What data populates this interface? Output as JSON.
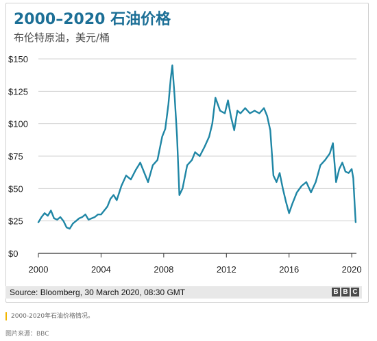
{
  "header": {
    "title": "2000–2020 石油价格",
    "subtitle": "布伦特原油，美元/桶"
  },
  "source": {
    "text": "Source: Bloomberg, 30 March 2020, 08:30 GMT",
    "logo_letters": [
      "B",
      "B",
      "C"
    ]
  },
  "caption": "2000-2020年石油价格情况。",
  "credit": "图片来源：BBC",
  "colors": {
    "line": "#1f86a5",
    "title": "#1c6f96",
    "grid": "#d0d0d0",
    "caption_accent": "#f2b600"
  },
  "chart_data": {
    "type": "line",
    "title": "2000–2020 石油价格",
    "subtitle": "布伦特原油，美元/桶",
    "xlabel": "",
    "ylabel": "",
    "xlim": [
      2000,
      2020.3
    ],
    "ylim": [
      0,
      150
    ],
    "x_ticks": [
      2000,
      2004,
      2008,
      2012,
      2016,
      2020
    ],
    "y_ticks": [
      0,
      25,
      50,
      75,
      100,
      125,
      150
    ],
    "y_tick_labels": [
      "$0",
      "$25",
      "$50",
      "$75",
      "$100",
      "$125",
      "$150"
    ],
    "grid": "horizontal",
    "series": [
      {
        "x": [
          2000.0,
          2000.2,
          2000.4,
          2000.6,
          2000.8,
          2001.0,
          2001.2,
          2001.4,
          2001.6,
          2001.8,
          2002.0,
          2002.2,
          2002.4,
          2002.6,
          2002.8,
          2003.0,
          2003.2,
          2003.4,
          2003.6,
          2003.8,
          2004.0,
          2004.2,
          2004.4,
          2004.6,
          2004.8,
          2005.0,
          2005.3,
          2005.6,
          2005.9,
          2006.2,
          2006.5,
          2006.8,
          2007.0,
          2007.3,
          2007.6,
          2007.9,
          2008.1,
          2008.3,
          2008.45,
          2008.55,
          2008.7,
          2008.85,
          2009.0,
          2009.2,
          2009.5,
          2009.8,
          2010.0,
          2010.3,
          2010.6,
          2010.9,
          2011.1,
          2011.3,
          2011.6,
          2011.9,
          2012.1,
          2012.3,
          2012.5,
          2012.7,
          2012.9,
          2013.2,
          2013.5,
          2013.8,
          2014.1,
          2014.4,
          2014.6,
          2014.8,
          2015.0,
          2015.2,
          2015.4,
          2015.6,
          2015.8,
          2016.0,
          2016.2,
          2016.5,
          2016.8,
          2017.1,
          2017.4,
          2017.7,
          2018.0,
          2018.3,
          2018.6,
          2018.8,
          2019.0,
          2019.2,
          2019.4,
          2019.6,
          2019.8,
          2020.0,
          2020.1,
          2020.2,
          2020.25
        ],
        "values": [
          24,
          28,
          31,
          29,
          33,
          27,
          26,
          28,
          25,
          20,
          19,
          23,
          25,
          27,
          28,
          30,
          26,
          27,
          28,
          30,
          30,
          33,
          36,
          42,
          45,
          41,
          52,
          60,
          57,
          64,
          70,
          61,
          55,
          68,
          72,
          90,
          96,
          115,
          135,
          145,
          120,
          90,
          45,
          50,
          68,
          72,
          78,
          75,
          82,
          90,
          100,
          120,
          110,
          108,
          118,
          105,
          95,
          110,
          108,
          112,
          108,
          110,
          108,
          112,
          106,
          95,
          60,
          55,
          62,
          50,
          40,
          31,
          38,
          47,
          52,
          55,
          47,
          55,
          68,
          72,
          77,
          85,
          55,
          65,
          70,
          63,
          62,
          65,
          58,
          35,
          24
        ]
      }
    ]
  }
}
